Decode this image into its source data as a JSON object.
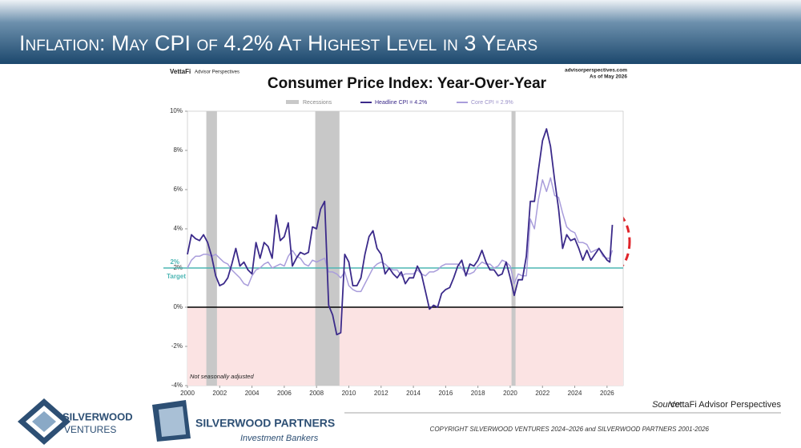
{
  "slide_title": "Inflation: May CPI of 4.2% At Highest Level in 3 Years",
  "chart_data": {
    "type": "line",
    "title": "Consumer Price Index: Year-Over-Year",
    "brand": "VettaFi",
    "brand_sub": "Advisor Perspectives",
    "site": "advisorperspectives.com",
    "as_of": "As of May 2026",
    "note": "Not seasonally adjusted",
    "x": [
      2000,
      2000.25,
      2000.5,
      2000.75,
      2001,
      2001.25,
      2001.5,
      2001.75,
      2002,
      2002.25,
      2002.5,
      2002.75,
      2003,
      2003.25,
      2003.5,
      2003.75,
      2004,
      2004.25,
      2004.5,
      2004.75,
      2005,
      2005.25,
      2005.5,
      2005.75,
      2006,
      2006.25,
      2006.5,
      2006.75,
      2007,
      2007.25,
      2007.5,
      2007.75,
      2008,
      2008.25,
      2008.5,
      2008.75,
      2009,
      2009.25,
      2009.5,
      2009.75,
      2010,
      2010.25,
      2010.5,
      2010.75,
      2011,
      2011.25,
      2011.5,
      2011.75,
      2012,
      2012.25,
      2012.5,
      2012.75,
      2013,
      2013.25,
      2013.5,
      2013.75,
      2014,
      2014.25,
      2014.5,
      2014.75,
      2015,
      2015.25,
      2015.5,
      2015.75,
      2016,
      2016.25,
      2016.5,
      2016.75,
      2017,
      2017.25,
      2017.5,
      2017.75,
      2018,
      2018.25,
      2018.5,
      2018.75,
      2019,
      2019.25,
      2019.5,
      2019.75,
      2020,
      2020.25,
      2020.5,
      2020.75,
      2021,
      2021.25,
      2021.5,
      2021.75,
      2022,
      2022.25,
      2022.5,
      2022.75,
      2023,
      2023.25,
      2023.5,
      2023.75,
      2024,
      2024.25,
      2024.5,
      2024.75,
      2025,
      2025.25,
      2025.5,
      2025.75,
      2026,
      2026.17,
      2026.33
    ],
    "series": [
      {
        "name": "Headline CPI = 4.2%",
        "color": "#3b2a8a",
        "values": [
          2.7,
          3.7,
          3.5,
          3.4,
          3.7,
          3.3,
          2.6,
          1.6,
          1.1,
          1.2,
          1.5,
          2.2,
          3.0,
          2.1,
          2.3,
          1.9,
          1.7,
          3.3,
          2.5,
          3.3,
          3.1,
          2.5,
          4.7,
          3.4,
          3.6,
          4.3,
          2.1,
          2.5,
          2.8,
          2.7,
          2.8,
          4.1,
          4.0,
          5.0,
          5.4,
          0.1,
          -0.4,
          -1.4,
          -1.3,
          2.7,
          2.3,
          1.1,
          1.1,
          1.5,
          2.7,
          3.6,
          3.9,
          3.0,
          2.7,
          1.7,
          2.0,
          1.7,
          1.5,
          1.8,
          1.2,
          1.5,
          1.5,
          2.1,
          1.7,
          0.8,
          -0.1,
          0.1,
          0.0,
          0.7,
          0.9,
          1.0,
          1.5,
          2.1,
          2.4,
          1.6,
          2.2,
          2.1,
          2.4,
          2.9,
          2.3,
          1.9,
          1.9,
          1.6,
          1.7,
          2.3,
          1.5,
          0.6,
          1.4,
          1.4,
          2.6,
          5.4,
          5.4,
          7.0,
          8.5,
          9.1,
          8.2,
          6.5,
          5.0,
          3.0,
          3.7,
          3.4,
          3.5,
          3.0,
          2.4,
          2.9,
          2.4,
          2.7,
          3.0,
          2.7,
          2.4,
          2.3,
          4.2
        ]
      },
      {
        "name": "Core CPI = 2.9%",
        "color": "#a99ddb",
        "values": [
          2.0,
          2.4,
          2.6,
          2.6,
          2.7,
          2.7,
          2.6,
          2.7,
          2.5,
          2.3,
          2.2,
          1.9,
          1.7,
          1.5,
          1.2,
          1.1,
          1.6,
          1.9,
          2.0,
          2.2,
          2.3,
          2.0,
          2.1,
          2.2,
          2.1,
          2.6,
          2.9,
          2.6,
          2.5,
          2.2,
          2.1,
          2.4,
          2.3,
          2.4,
          2.5,
          1.8,
          1.8,
          1.7,
          1.5,
          1.8,
          1.1,
          0.9,
          0.8,
          0.8,
          1.2,
          1.6,
          2.0,
          2.2,
          2.3,
          2.2,
          2.0,
          1.9,
          1.9,
          1.6,
          1.7,
          1.7,
          1.7,
          1.9,
          1.7,
          1.6,
          1.8,
          1.8,
          1.9,
          2.1,
          2.2,
          2.2,
          2.2,
          2.2,
          2.0,
          1.7,
          1.7,
          1.8,
          2.1,
          2.3,
          2.2,
          2.2,
          2.0,
          2.1,
          2.4,
          2.3,
          2.1,
          1.2,
          1.7,
          1.6,
          1.6,
          4.5,
          4.0,
          5.5,
          6.5,
          5.9,
          6.6,
          5.7,
          5.6,
          4.8,
          4.1,
          3.9,
          3.8,
          3.3,
          3.3,
          3.2,
          2.8,
          2.9,
          3.0,
          2.6,
          2.5,
          2.5,
          2.9
        ]
      }
    ],
    "recessions": {
      "name": "Recessions",
      "color": "#c8c8c8",
      "ranges": [
        [
          2001.17,
          2001.83
        ],
        [
          2007.92,
          2009.42
        ],
        [
          2020.08,
          2020.33
        ]
      ]
    },
    "target": {
      "value": 2,
      "label": "2%",
      "name": "Target",
      "color": "#4db6b4"
    },
    "xlim": [
      2000,
      2027
    ],
    "xticks": [
      2000,
      2002,
      2004,
      2006,
      2008,
      2010,
      2012,
      2014,
      2016,
      2018,
      2020,
      2022,
      2024,
      2026
    ],
    "ylim": [
      -4,
      10
    ],
    "yticks": [
      {
        "value": 10,
        "label": "10%"
      },
      {
        "value": 8,
        "label": "8%"
      },
      {
        "value": 6,
        "label": "6%"
      },
      {
        "value": 4,
        "label": "4%"
      },
      {
        "value": 2,
        "label": "2%"
      },
      {
        "value": 0,
        "label": "0%"
      },
      {
        "value": -2,
        "label": "-2%"
      },
      {
        "value": -4,
        "label": "-4%"
      }
    ],
    "negative_shade": "#fbe3e3"
  },
  "source": {
    "label": "Source:",
    "text": "VettaFi Advisor Perspectives"
  },
  "copyright": "COPYRIGHT SILVERWOOD VENTURES 2024–2026 and SILVERWOOD PARTNERS 2001-2026",
  "logos": [
    {
      "name": "SILVERWOOD",
      "sub": "VENTURES"
    },
    {
      "name": "SILVERWOOD PARTNERS",
      "sub": "Investment Bankers"
    }
  ]
}
